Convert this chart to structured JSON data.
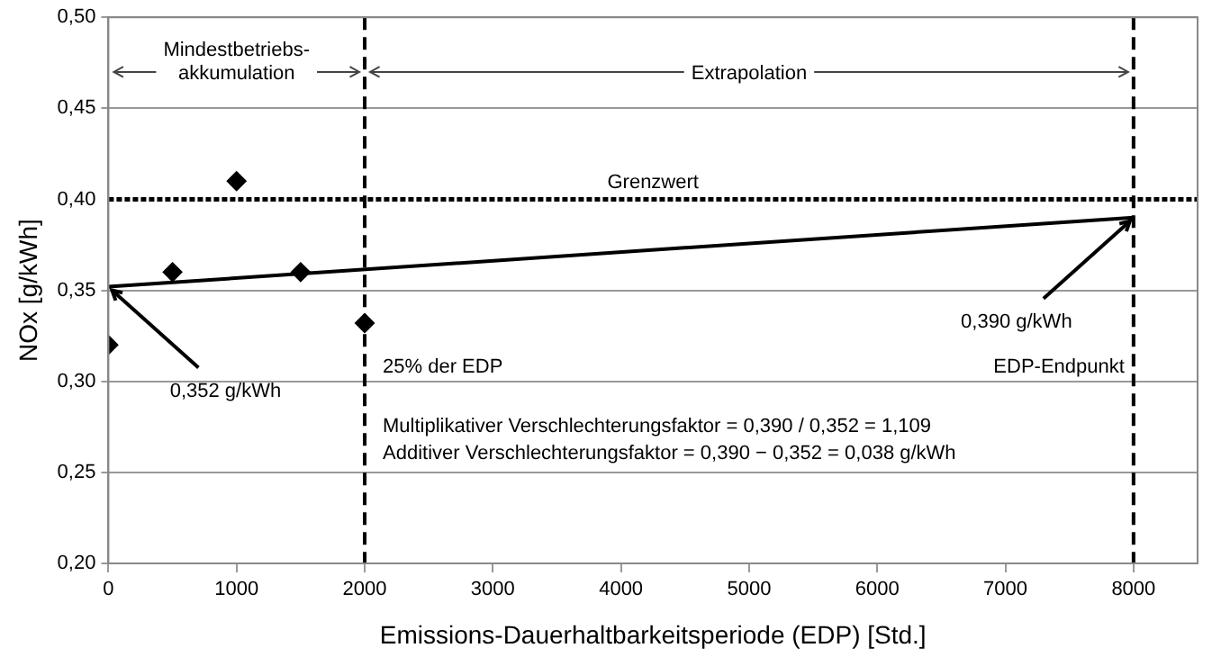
{
  "chart_data": {
    "type": "scatter",
    "xlabel": "Emissions-Dauerhaltbarkeitsperiode (EDP) [Std.]",
    "ylabel": "NOx [g/kWh]",
    "series": [
      {
        "color": "#000000",
        "marker": "diamond",
        "x": [
          0,
          500,
          1000,
          1500,
          2000
        ],
        "values": [
          0.32,
          0.36,
          0.41,
          0.36,
          0.332
        ]
      },
      {
        "type": "line",
        "color": "#000000",
        "marker": "none",
        "line_style": "solid",
        "x": [
          0,
          8000
        ],
        "values": [
          0.352,
          0.39
        ]
      }
    ],
    "xlim": [
      0,
      8500
    ],
    "xticks": [
      0,
      1000,
      2000,
      3000,
      4000,
      5000,
      6000,
      7000,
      8000
    ],
    "ylim": [
      0.2,
      0.5
    ],
    "yticks": [
      {
        "value": 0.2,
        "label": "0,20"
      },
      {
        "value": 0.25,
        "label": "0,25"
      },
      {
        "value": 0.3,
        "label": "0,30"
      },
      {
        "value": 0.35,
        "label": "0,35"
      },
      {
        "value": 0.4,
        "label": "0,40"
      },
      {
        "value": 0.45,
        "label": "0,45"
      },
      {
        "value": 0.5,
        "label": "0,50"
      }
    ],
    "grid": "y",
    "legend": false,
    "ref_lines": [
      {
        "axis": "y",
        "value": 0.4,
        "label": "Grenzwert",
        "color": "#000000",
        "line_style": "dotted"
      },
      {
        "axis": "x",
        "value": 2000,
        "label": "25% der EDP",
        "color": "#000000",
        "line_style": "dashed"
      },
      {
        "axis": "x",
        "value": 8000,
        "label": "EDP-Endpunkt",
        "color": "#000000",
        "line_style": "dashed"
      }
    ],
    "annotations": [
      {
        "text": "Mindestbetriebs-\nakkumulation",
        "x": 2000,
        "y": 0.47
      },
      {
        "text": "Extrapolation",
        "x": 8000,
        "y": 0.47
      },
      {
        "text": "0,352 g/kWh",
        "x": 0,
        "y": 0.352
      },
      {
        "text": "0,390 g/kWh",
        "x": 8000,
        "y": 0.39
      },
      "Multiplikativer Verschlechterungsfaktor = 0,390 / 0,352 = 1,109",
      "Additiver Verschlechterungsfaktor = 0,390 − 0,352 = 0,038 g/kWh"
    ]
  }
}
